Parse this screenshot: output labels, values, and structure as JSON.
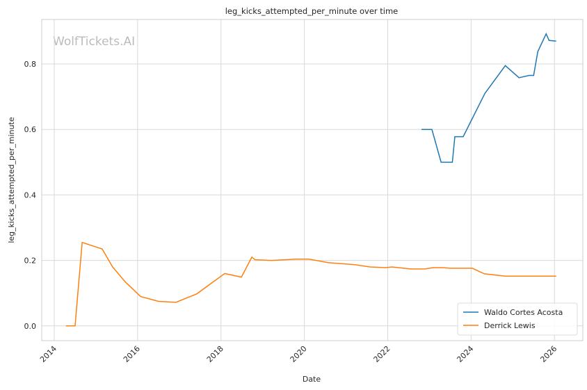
{
  "chart_data": {
    "type": "line",
    "title": "leg_kicks_attempted_per_minute over time",
    "xlabel": "Date",
    "ylabel": "leg_kicks_attempted_per_minute",
    "watermark": "WolfTickets.AI",
    "xlim": [
      2013.7,
      2026.68
    ],
    "xticks": [
      2014,
      2016,
      2018,
      2020,
      2022,
      2024,
      2026
    ],
    "ylim": [
      -0.045,
      0.936
    ],
    "yticks": [
      {
        "value": 0,
        "label": "0.0"
      },
      {
        "value": 0.2,
        "label": "0.2"
      },
      {
        "value": 0.4,
        "label": "0.4"
      },
      {
        "value": 0.6,
        "label": "0.6"
      },
      {
        "value": 0.8,
        "label": "0.8"
      }
    ],
    "grid": true,
    "legend": "lower right",
    "series": [
      {
        "name": "Waldo Cortes Acosta",
        "color": "#1f77b4",
        "x": [
          2022.81,
          2023.06,
          2023.28,
          2023.55,
          2023.61,
          2023.81,
          2024.33,
          2024.82,
          2025.15,
          2025.39,
          2025.5,
          2025.6,
          2025.8,
          2025.87,
          2026.04
        ],
        "values": [
          0.6,
          0.6,
          0.5,
          0.5,
          0.578,
          0.578,
          0.71,
          0.795,
          0.758,
          0.765,
          0.765,
          0.838,
          0.892,
          0.872,
          0.87
        ]
      },
      {
        "name": "Derrick Lewis",
        "color": "#ff7f0e",
        "x": [
          2014.28,
          2014.5,
          2014.67,
          2015.15,
          2015.4,
          2015.7,
          2016.07,
          2016.5,
          2016.92,
          2017.42,
          2018.09,
          2018.49,
          2018.74,
          2018.82,
          2019.21,
          2019.81,
          2020.11,
          2020.58,
          2021.21,
          2021.58,
          2021.95,
          2022.1,
          2022.55,
          2022.89,
          2023.09,
          2023.34,
          2023.5,
          2024.03,
          2024.32,
          2024.82,
          2026.04
        ],
        "values": [
          0,
          0,
          0.255,
          0.235,
          0.18,
          0.135,
          0.09,
          0.075,
          0.072,
          0.098,
          0.16,
          0.149,
          0.21,
          0.202,
          0.2,
          0.204,
          0.204,
          0.193,
          0.187,
          0.18,
          0.178,
          0.18,
          0.174,
          0.174,
          0.178,
          0.178,
          0.176,
          0.176,
          0.159,
          0.152,
          0.152
        ]
      }
    ]
  }
}
